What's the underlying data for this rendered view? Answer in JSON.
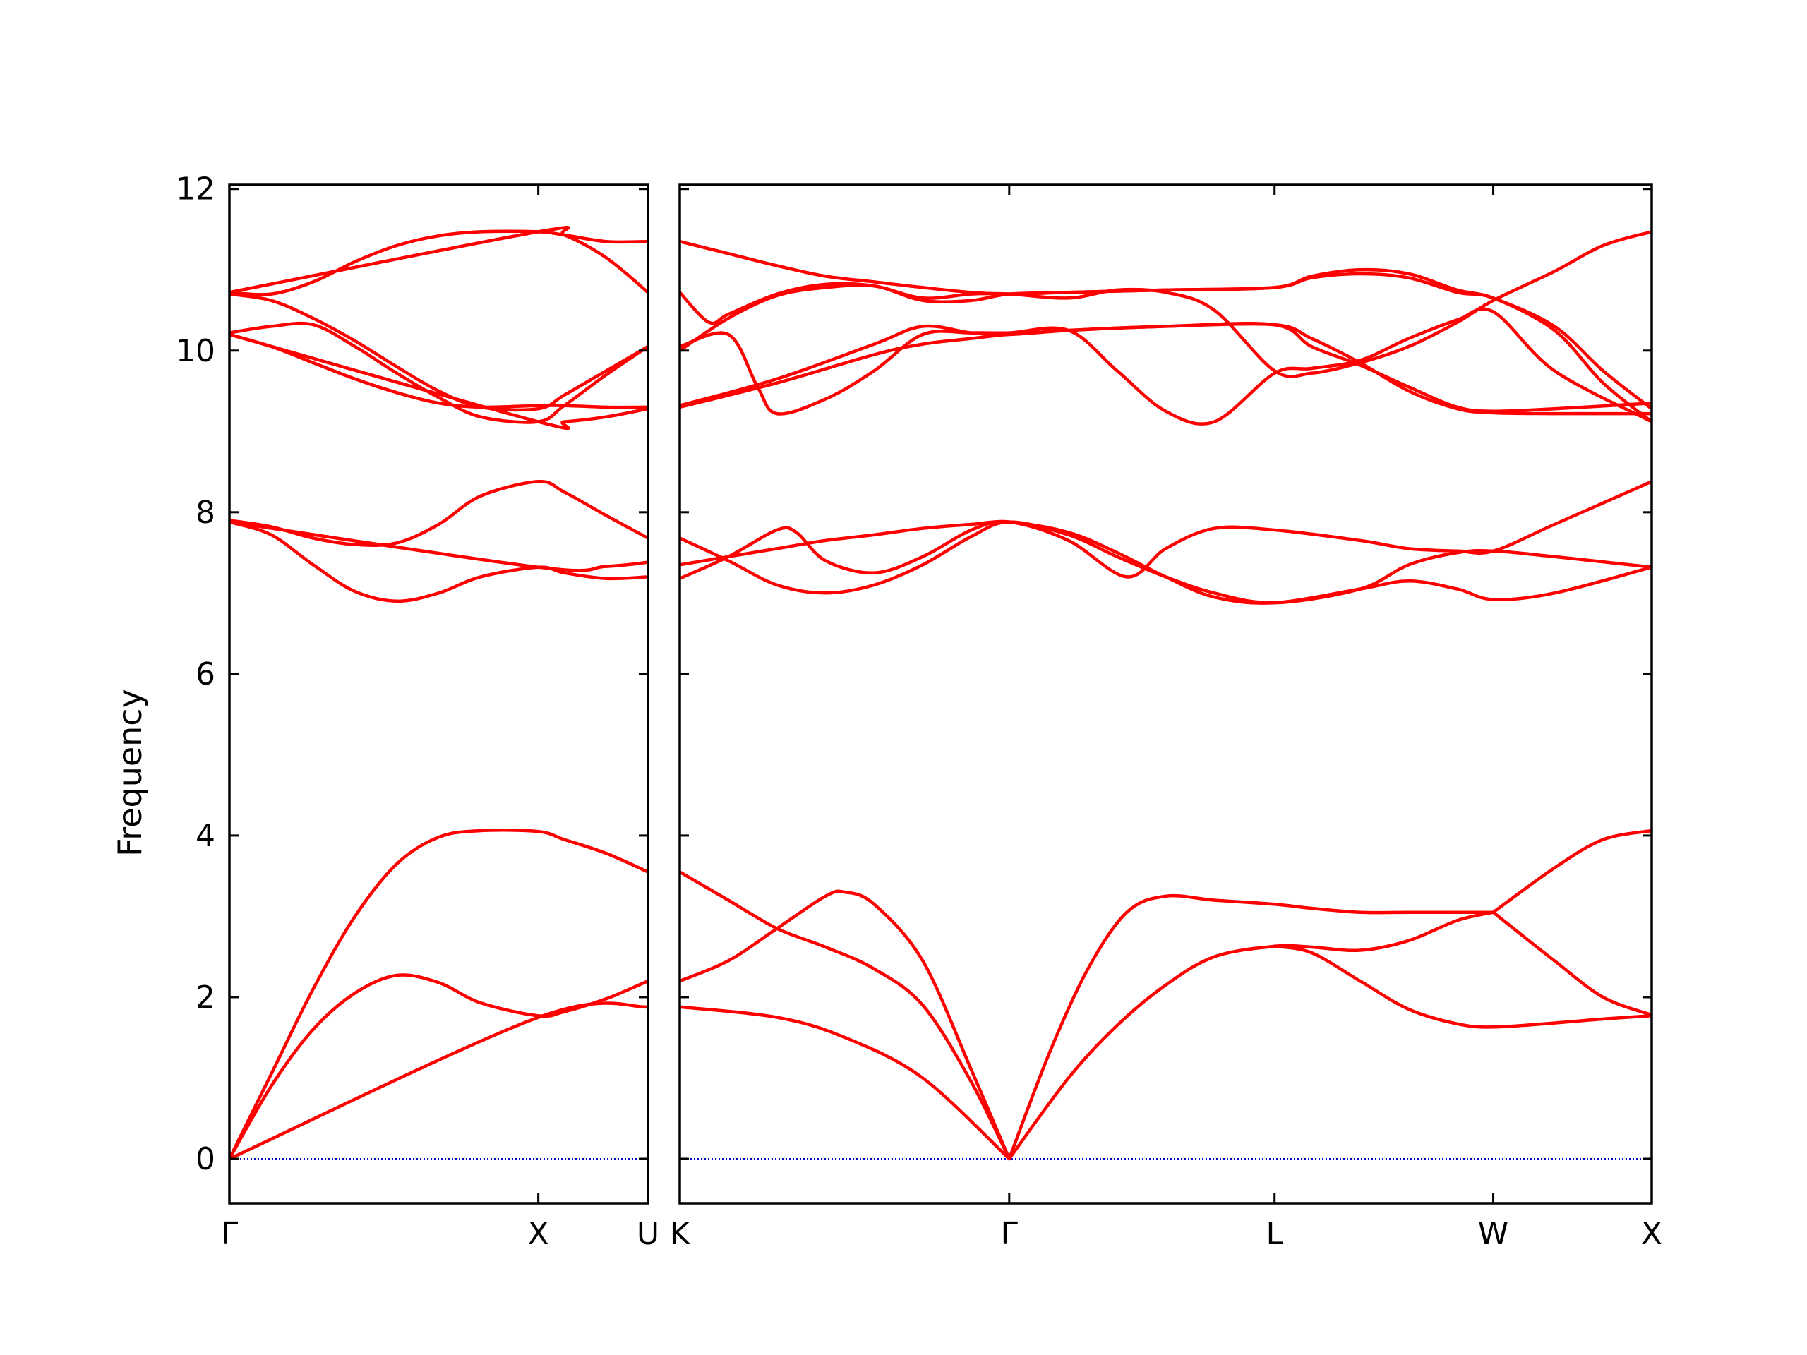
{
  "chart_data": {
    "type": "line",
    "ylabel": "Frequency",
    "ylim": [
      -0.55,
      12.05
    ],
    "yticks": [
      0,
      2,
      4,
      6,
      8,
      10,
      12
    ],
    "grid": false,
    "line_color": "#ff0000",
    "zero_line_color": "#0000cc",
    "panels": [
      {
        "xlim": [
          0,
          1
        ],
        "tick_positions": [
          0,
          0.738,
          1
        ],
        "tick_labels": [
          "Γ",
          "X",
          "U"
        ],
        "series": [
          {
            "x": [
              0,
              0.1,
              0.2,
              0.3,
              0.4,
              0.5,
              0.6,
              0.738,
              0.8,
              0.9,
              1
            ],
            "y": [
              0,
              1.05,
              2.1,
              3.0,
              3.65,
              3.98,
              4.06,
              4.05,
              3.95,
              3.78,
              3.55
            ]
          },
          {
            "x": [
              0,
              0.1,
              0.2,
              0.3,
              0.4,
              0.5,
              0.6,
              0.738,
              0.8,
              0.9,
              1
            ],
            "y": [
              0,
              0.9,
              1.6,
              2.05,
              2.27,
              2.18,
              1.93,
              1.77,
              1.82,
              1.98,
              2.2
            ]
          },
          {
            "x": [
              0,
              0.738,
              1
            ],
            "y": [
              0,
              1.75,
              1.88
            ]
          },
          {
            "x": [
              0,
              0.1,
              0.2,
              0.3,
              0.4,
              0.5,
              0.6,
              0.738,
              0.8,
              0.9,
              1
            ],
            "y": [
              7.9,
              7.82,
              7.68,
              7.6,
              7.62,
              7.85,
              8.2,
              8.38,
              8.25,
              7.96,
              7.68
            ]
          },
          {
            "x": [
              0,
              0.1,
              0.2,
              0.3,
              0.4,
              0.5,
              0.6,
              0.738,
              0.8,
              0.9,
              1
            ],
            "y": [
              7.88,
              7.72,
              7.35,
              7.02,
              6.9,
              7.0,
              7.2,
              7.32,
              7.25,
              7.18,
              7.2
            ]
          },
          {
            "x": [
              0,
              0.738,
              0.9,
              1
            ],
            "y": [
              7.88,
              7.32,
              7.33,
              7.38
            ]
          },
          {
            "x": [
              0,
              0.1,
              0.2,
              0.3,
              0.4,
              0.5,
              0.6,
              0.738,
              0.8,
              0.9,
              1
            ],
            "y": [
              10.72,
              10.7,
              10.85,
              11.1,
              11.3,
              11.42,
              11.47,
              11.47,
              11.43,
              11.35,
              11.35
            ]
          },
          {
            "x": [
              0,
              0.738,
              0.8,
              0.9,
              1
            ],
            "y": [
              10.72,
              11.47,
              11.43,
              11.15,
              10.72
            ]
          },
          {
            "x": [
              0,
              0.1,
              0.2,
              0.3,
              0.4,
              0.5,
              0.6,
              0.738,
              0.8,
              0.9,
              1
            ],
            "y": [
              10.7,
              10.62,
              10.4,
              10.12,
              9.8,
              9.5,
              9.3,
              9.28,
              9.45,
              9.75,
              10.05
            ]
          },
          {
            "x": [
              0,
              0.1,
              0.2,
              0.3,
              0.4,
              0.5,
              0.6,
              0.738,
              0.8,
              0.9,
              1
            ],
            "y": [
              10.22,
              10.3,
              10.32,
              10.05,
              9.72,
              9.42,
              9.18,
              9.12,
              9.32,
              9.7,
              10.05
            ]
          },
          {
            "x": [
              0,
              0.1,
              0.2,
              0.3,
              0.4,
              0.5,
              0.6,
              0.738,
              0.8,
              0.9,
              1
            ],
            "y": [
              10.2,
              10.05,
              9.85,
              9.65,
              9.48,
              9.35,
              9.3,
              9.32,
              9.32,
              9.3,
              9.3
            ]
          },
          {
            "x": [
              0,
              0.738,
              0.8,
              0.9,
              1
            ],
            "y": [
              10.2,
              9.12,
              9.12,
              9.18,
              9.28
            ]
          }
        ]
      },
      {
        "xlim": [
          0,
          1
        ],
        "tick_positions": [
          0,
          0.339,
          0.612,
          0.837,
          1
        ],
        "tick_labels": [
          "K",
          "Γ",
          "L",
          "W",
          "X"
        ],
        "series": [
          {
            "x": [
              0,
              0.1,
              0.17,
              0.25,
              0.339
            ],
            "y": [
              1.88,
              1.75,
              1.5,
              1.0,
              0
            ]
          },
          {
            "x": [
              0,
              0.05,
              0.1,
              0.15,
              0.2,
              0.25,
              0.3,
              0.339
            ],
            "y": [
              3.55,
              3.2,
              2.85,
              2.62,
              2.35,
              1.9,
              0.95,
              0
            ]
          },
          {
            "x": [
              0,
              0.05,
              0.1,
              0.15,
              0.17,
              0.2,
              0.25,
              0.3,
              0.339
            ],
            "y": [
              2.2,
              2.45,
              2.85,
              3.25,
              3.3,
              3.15,
              2.45,
              1.1,
              0
            ]
          },
          {
            "x": [
              0.339,
              0.4,
              0.45,
              0.5,
              0.55,
              0.612,
              0.65,
              0.7,
              0.75,
              0.8,
              0.837
            ],
            "y": [
              0,
              1.0,
              1.65,
              2.15,
              2.5,
              2.63,
              2.62,
              2.58,
              2.7,
              2.95,
              3.05
            ]
          },
          {
            "x": [
              0.339,
              0.38,
              0.42,
              0.46,
              0.5,
              0.55,
              0.612,
              0.65,
              0.7,
              0.75,
              0.837
            ],
            "y": [
              0,
              1.3,
              2.35,
              3.05,
              3.25,
              3.2,
              3.15,
              3.1,
              3.05,
              3.05,
              3.05
            ]
          },
          {
            "x": [
              0.612,
              0.65,
              0.7,
              0.75,
              0.8,
              0.837,
              0.9,
              0.95,
              1
            ],
            "y": [
              2.63,
              2.55,
              2.2,
              1.85,
              1.67,
              1.63,
              1.68,
              1.73,
              1.77
            ]
          },
          {
            "x": [
              0.837,
              0.9,
              0.95,
              1
            ],
            "y": [
              3.05,
              2.45,
              2.0,
              1.78
            ]
          },
          {
            "x": [
              0.837,
              0.9,
              0.95,
              1
            ],
            "y": [
              3.05,
              3.6,
              3.95,
              4.06
            ]
          },
          {
            "x": [
              0,
              0.05,
              0.1,
              0.15,
              0.2,
              0.25,
              0.3,
              0.339,
              0.4,
              0.45,
              0.5,
              0.55,
              0.612,
              0.7,
              0.75,
              0.8,
              0.837,
              0.9,
              1
            ],
            "y": [
              7.35,
              7.45,
              7.55,
              7.65,
              7.72,
              7.8,
              7.85,
              7.88,
              7.75,
              7.5,
              7.2,
              6.95,
              6.88,
              7.05,
              7.15,
              7.05,
              6.92,
              7.0,
              7.32
            ]
          },
          {
            "x": [
              0,
              0.05,
              0.1,
              0.15,
              0.2,
              0.25,
              0.3,
              0.339,
              0.4,
              0.45,
              0.5,
              0.55,
              0.612,
              0.7,
              0.75,
              0.8,
              0.837,
              0.9,
              1
            ],
            "y": [
              7.68,
              7.4,
              7.1,
              7.0,
              7.1,
              7.35,
              7.7,
              7.88,
              7.72,
              7.45,
              7.2,
              7.0,
              6.88,
              7.05,
              7.35,
              7.5,
              7.52,
              7.45,
              7.32
            ]
          },
          {
            "x": [
              0,
              0.05,
              0.1,
              0.12,
              0.15,
              0.2,
              0.25,
              0.3,
              0.339,
              0.4,
              0.46,
              0.5,
              0.55,
              0.612,
              0.7,
              0.75,
              0.8,
              0.837,
              0.9,
              1
            ],
            "y": [
              7.18,
              7.45,
              7.78,
              7.75,
              7.4,
              7.25,
              7.45,
              7.78,
              7.88,
              7.65,
              7.2,
              7.55,
              7.8,
              7.78,
              7.65,
              7.55,
              7.52,
              7.52,
              7.85,
              8.38
            ]
          },
          {
            "x": [
              0,
              0.05,
              0.1,
              0.15,
              0.2,
              0.25,
              0.3,
              0.339,
              0.4,
              0.5,
              0.612,
              0.65,
              0.7,
              0.75,
              0.8,
              0.837,
              0.9,
              0.95,
              1
            ],
            "y": [
              11.35,
              11.2,
              11.05,
              10.92,
              10.85,
              10.78,
              10.72,
              10.7,
              10.72,
              10.75,
              10.78,
              10.92,
              11.0,
              10.95,
              10.75,
              10.65,
              10.3,
              9.75,
              9.28
            ]
          },
          {
            "x": [
              0,
              0.03,
              0.05,
              0.1,
              0.15,
              0.2,
              0.25,
              0.3,
              0.339,
              0.4,
              0.45,
              0.5,
              0.55,
              0.612,
              0.65,
              0.7,
              0.75,
              0.8,
              0.837,
              0.9,
              0.95,
              1
            ],
            "y": [
              10.72,
              10.35,
              10.45,
              10.7,
              10.82,
              10.8,
              10.65,
              10.7,
              10.7,
              10.65,
              10.75,
              10.72,
              10.5,
              9.75,
              9.72,
              9.85,
              10.05,
              10.35,
              10.62,
              10.98,
              11.3,
              11.47
            ]
          },
          {
            "x": [
              0,
              0.05,
              0.1,
              0.15,
              0.2,
              0.25,
              0.3,
              0.339,
              0.4,
              0.5,
              0.612,
              0.65,
              0.7,
              0.75,
              0.8,
              0.837,
              0.9,
              0.95,
              1
            ],
            "y": [
              10.0,
              10.4,
              10.68,
              10.78,
              10.8,
              10.62,
              10.62,
              10.7,
              10.72,
              10.75,
              10.78,
              10.9,
              10.95,
              10.9,
              10.72,
              10.65,
              10.25,
              9.6,
              9.12
            ]
          },
          {
            "x": [
              0,
              0.05,
              0.08,
              0.1,
              0.15,
              0.2,
              0.25,
              0.3,
              0.339,
              0.4,
              0.45,
              0.5,
              0.55,
              0.612,
              0.65,
              0.7,
              0.75,
              0.8,
              0.837,
              0.9,
              1
            ],
            "y": [
              10.05,
              10.2,
              9.55,
              9.22,
              9.4,
              9.75,
              10.2,
              10.22,
              10.22,
              10.25,
              9.75,
              9.25,
              9.12,
              9.72,
              9.78,
              9.88,
              10.15,
              10.38,
              10.48,
              9.75,
              9.12
            ]
          },
          {
            "x": [
              0,
              0.1,
              0.2,
              0.25,
              0.3,
              0.339,
              0.4,
              0.5,
              0.612,
              0.65,
              0.7,
              0.75,
              0.8,
              0.837,
              0.9,
              1
            ],
            "y": [
              9.32,
              9.65,
              10.08,
              10.3,
              10.22,
              10.2,
              10.25,
              10.3,
              10.32,
              10.05,
              9.82,
              9.55,
              9.3,
              9.25,
              9.28,
              9.35
            ]
          },
          {
            "x": [
              0,
              0.1,
              0.2,
              0.25,
              0.3,
              0.339,
              0.4,
              0.5,
              0.612,
              0.65,
              0.7,
              0.75,
              0.8,
              0.837,
              0.9,
              1
            ],
            "y": [
              9.3,
              9.6,
              9.95,
              10.08,
              10.15,
              10.2,
              10.25,
              10.3,
              10.32,
              10.15,
              9.85,
              9.5,
              9.28,
              9.23,
              9.22,
              9.22
            ]
          }
        ]
      }
    ]
  }
}
